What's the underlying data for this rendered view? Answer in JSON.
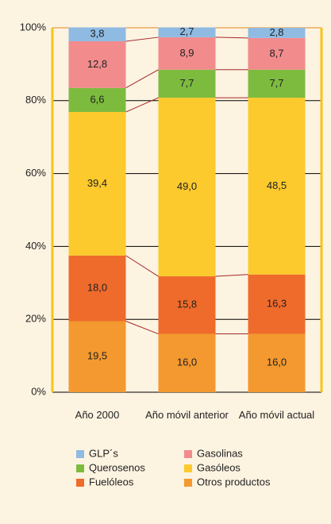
{
  "chart_data": {
    "type": "stacked_bar",
    "categories": [
      "Año 2000",
      "Año móvil anterior",
      "Año móvil actual"
    ],
    "series": [
      {
        "name": "GLP´s",
        "color": "#8fbbe3",
        "values": [
          3.8,
          2.7,
          2.8
        ],
        "value_labels": [
          "3,8",
          "2,7",
          "2,8"
        ]
      },
      {
        "name": "Gasolinas",
        "color": "#f28b8c",
        "values": [
          12.8,
          8.9,
          8.7
        ],
        "value_labels": [
          "12,8",
          "8,9",
          "8,7"
        ]
      },
      {
        "name": "Querosenos",
        "color": "#7dbb3e",
        "values": [
          6.6,
          7.7,
          7.7
        ],
        "value_labels": [
          "6,6",
          "7,7",
          "7,7"
        ]
      },
      {
        "name": "Gasóleos",
        "color": "#fcca2c",
        "values": [
          39.4,
          49.0,
          48.5
        ],
        "value_labels": [
          "39,4",
          "49,0",
          "48,5"
        ]
      },
      {
        "name": "Fuelóleos",
        "color": "#ef6b2b",
        "values": [
          18.0,
          15.8,
          16.3
        ],
        "value_labels": [
          "18,0",
          "15,8",
          "16,3"
        ]
      },
      {
        "name": "Otros productos",
        "color": "#f3992f",
        "values": [
          19.5,
          16.0,
          16.0
        ],
        "value_labels": [
          "19,5",
          "16,0",
          "16,0"
        ]
      }
    ],
    "ylim": [
      0,
      100
    ],
    "yticks": [
      {
        "value": 0,
        "label": "0%"
      },
      {
        "value": 20,
        "label": "20%"
      },
      {
        "value": 40,
        "label": "40%"
      },
      {
        "value": 60,
        "label": "60%"
      },
      {
        "value": 80,
        "label": "80%"
      },
      {
        "value": 100,
        "label": "100%"
      }
    ],
    "grid": true
  }
}
